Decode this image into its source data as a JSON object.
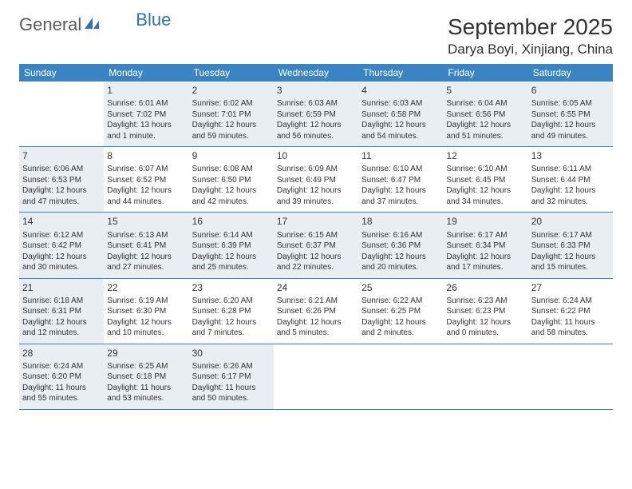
{
  "logo": {
    "part1": "General",
    "part2": "Blue"
  },
  "header": {
    "month_title": "September 2025",
    "location": "Darya Boyi, Xinjiang, China"
  },
  "colors": {
    "header_bg": "#3b84c4",
    "header_text": "#ffffff",
    "shaded_bg": "#e9eef2",
    "border": "#3b84c4",
    "text": "#333333",
    "logo_gray": "#5a5a5a",
    "logo_blue": "#2d72b5"
  },
  "day_names": [
    "Sunday",
    "Monday",
    "Tuesday",
    "Wednesday",
    "Thursday",
    "Friday",
    "Saturday"
  ],
  "weeks": [
    [
      {
        "day": "",
        "sunrise": "",
        "sunset": "",
        "daylight": "",
        "shaded": false
      },
      {
        "day": "1",
        "sunrise": "Sunrise: 6:01 AM",
        "sunset": "Sunset: 7:02 PM",
        "daylight": "Daylight: 13 hours and 1 minute.",
        "shaded": true
      },
      {
        "day": "2",
        "sunrise": "Sunrise: 6:02 AM",
        "sunset": "Sunset: 7:01 PM",
        "daylight": "Daylight: 12 hours and 59 minutes.",
        "shaded": true
      },
      {
        "day": "3",
        "sunrise": "Sunrise: 6:03 AM",
        "sunset": "Sunset: 6:59 PM",
        "daylight": "Daylight: 12 hours and 56 minutes.",
        "shaded": true
      },
      {
        "day": "4",
        "sunrise": "Sunrise: 6:03 AM",
        "sunset": "Sunset: 6:58 PM",
        "daylight": "Daylight: 12 hours and 54 minutes.",
        "shaded": true
      },
      {
        "day": "5",
        "sunrise": "Sunrise: 6:04 AM",
        "sunset": "Sunset: 6:56 PM",
        "daylight": "Daylight: 12 hours and 51 minutes.",
        "shaded": true
      },
      {
        "day": "6",
        "sunrise": "Sunrise: 6:05 AM",
        "sunset": "Sunset: 6:55 PM",
        "daylight": "Daylight: 12 hours and 49 minutes.",
        "shaded": true
      }
    ],
    [
      {
        "day": "7",
        "sunrise": "Sunrise: 6:06 AM",
        "sunset": "Sunset: 6:53 PM",
        "daylight": "Daylight: 12 hours and 47 minutes.",
        "shaded": true
      },
      {
        "day": "8",
        "sunrise": "Sunrise: 6:07 AM",
        "sunset": "Sunset: 6:52 PM",
        "daylight": "Daylight: 12 hours and 44 minutes.",
        "shaded": false
      },
      {
        "day": "9",
        "sunrise": "Sunrise: 6:08 AM",
        "sunset": "Sunset: 6:50 PM",
        "daylight": "Daylight: 12 hours and 42 minutes.",
        "shaded": false
      },
      {
        "day": "10",
        "sunrise": "Sunrise: 6:09 AM",
        "sunset": "Sunset: 6:49 PM",
        "daylight": "Daylight: 12 hours and 39 minutes.",
        "shaded": false
      },
      {
        "day": "11",
        "sunrise": "Sunrise: 6:10 AM",
        "sunset": "Sunset: 6:47 PM",
        "daylight": "Daylight: 12 hours and 37 minutes.",
        "shaded": false
      },
      {
        "day": "12",
        "sunrise": "Sunrise: 6:10 AM",
        "sunset": "Sunset: 6:45 PM",
        "daylight": "Daylight: 12 hours and 34 minutes.",
        "shaded": false
      },
      {
        "day": "13",
        "sunrise": "Sunrise: 6:11 AM",
        "sunset": "Sunset: 6:44 PM",
        "daylight": "Daylight: 12 hours and 32 minutes.",
        "shaded": false
      }
    ],
    [
      {
        "day": "14",
        "sunrise": "Sunrise: 6:12 AM",
        "sunset": "Sunset: 6:42 PM",
        "daylight": "Daylight: 12 hours and 30 minutes.",
        "shaded": true
      },
      {
        "day": "15",
        "sunrise": "Sunrise: 6:13 AM",
        "sunset": "Sunset: 6:41 PM",
        "daylight": "Daylight: 12 hours and 27 minutes.",
        "shaded": true
      },
      {
        "day": "16",
        "sunrise": "Sunrise: 6:14 AM",
        "sunset": "Sunset: 6:39 PM",
        "daylight": "Daylight: 12 hours and 25 minutes.",
        "shaded": true
      },
      {
        "day": "17",
        "sunrise": "Sunrise: 6:15 AM",
        "sunset": "Sunset: 6:37 PM",
        "daylight": "Daylight: 12 hours and 22 minutes.",
        "shaded": true
      },
      {
        "day": "18",
        "sunrise": "Sunrise: 6:16 AM",
        "sunset": "Sunset: 6:36 PM",
        "daylight": "Daylight: 12 hours and 20 minutes.",
        "shaded": true
      },
      {
        "day": "19",
        "sunrise": "Sunrise: 6:17 AM",
        "sunset": "Sunset: 6:34 PM",
        "daylight": "Daylight: 12 hours and 17 minutes.",
        "shaded": true
      },
      {
        "day": "20",
        "sunrise": "Sunrise: 6:17 AM",
        "sunset": "Sunset: 6:33 PM",
        "daylight": "Daylight: 12 hours and 15 minutes.",
        "shaded": true
      }
    ],
    [
      {
        "day": "21",
        "sunrise": "Sunrise: 6:18 AM",
        "sunset": "Sunset: 6:31 PM",
        "daylight": "Daylight: 12 hours and 12 minutes.",
        "shaded": true
      },
      {
        "day": "22",
        "sunrise": "Sunrise: 6:19 AM",
        "sunset": "Sunset: 6:30 PM",
        "daylight": "Daylight: 12 hours and 10 minutes.",
        "shaded": false
      },
      {
        "day": "23",
        "sunrise": "Sunrise: 6:20 AM",
        "sunset": "Sunset: 6:28 PM",
        "daylight": "Daylight: 12 hours and 7 minutes.",
        "shaded": false
      },
      {
        "day": "24",
        "sunrise": "Sunrise: 6:21 AM",
        "sunset": "Sunset: 6:26 PM",
        "daylight": "Daylight: 12 hours and 5 minutes.",
        "shaded": false
      },
      {
        "day": "25",
        "sunrise": "Sunrise: 6:22 AM",
        "sunset": "Sunset: 6:25 PM",
        "daylight": "Daylight: 12 hours and 2 minutes.",
        "shaded": false
      },
      {
        "day": "26",
        "sunrise": "Sunrise: 6:23 AM",
        "sunset": "Sunset: 6:23 PM",
        "daylight": "Daylight: 12 hours and 0 minutes.",
        "shaded": false
      },
      {
        "day": "27",
        "sunrise": "Sunrise: 6:24 AM",
        "sunset": "Sunset: 6:22 PM",
        "daylight": "Daylight: 11 hours and 58 minutes.",
        "shaded": false
      }
    ],
    [
      {
        "day": "28",
        "sunrise": "Sunrise: 6:24 AM",
        "sunset": "Sunset: 6:20 PM",
        "daylight": "Daylight: 11 hours and 55 minutes.",
        "shaded": true
      },
      {
        "day": "29",
        "sunrise": "Sunrise: 6:25 AM",
        "sunset": "Sunset: 6:18 PM",
        "daylight": "Daylight: 11 hours and 53 minutes.",
        "shaded": true
      },
      {
        "day": "30",
        "sunrise": "Sunrise: 6:26 AM",
        "sunset": "Sunset: 6:17 PM",
        "daylight": "Daylight: 11 hours and 50 minutes.",
        "shaded": true
      },
      {
        "day": "",
        "sunrise": "",
        "sunset": "",
        "daylight": "",
        "shaded": false
      },
      {
        "day": "",
        "sunrise": "",
        "sunset": "",
        "daylight": "",
        "shaded": false
      },
      {
        "day": "",
        "sunrise": "",
        "sunset": "",
        "daylight": "",
        "shaded": false
      },
      {
        "day": "",
        "sunrise": "",
        "sunset": "",
        "daylight": "",
        "shaded": false
      }
    ]
  ]
}
